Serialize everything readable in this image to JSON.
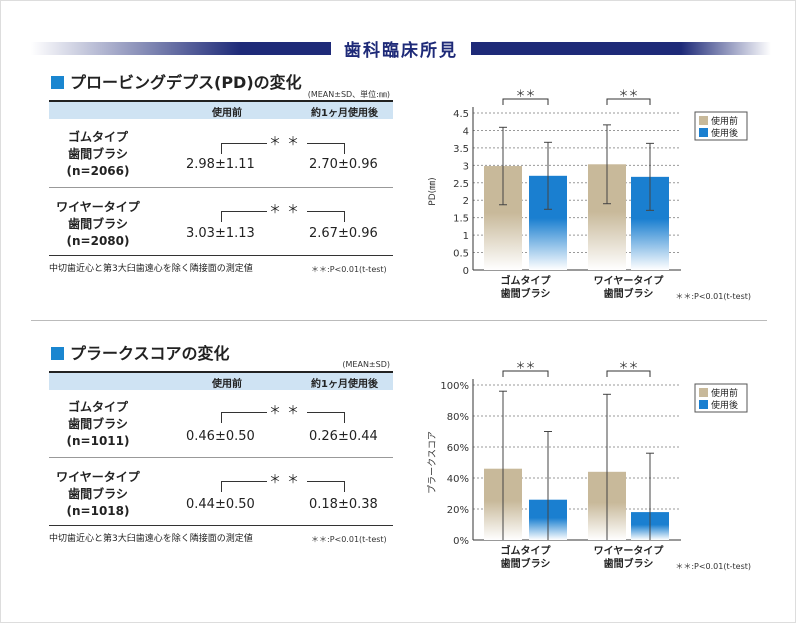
{
  "header": {
    "title": "歯科臨床所見"
  },
  "pd": {
    "title": "プロービングデプス(PD)の変化",
    "unit_note": "(MEAN±SD、単位:㎜)",
    "col1": "使用前",
    "col2": "約1ヶ月使用後",
    "rows": [
      {
        "l1": "ゴムタイプ",
        "l2": "歯間ブラシ",
        "l3": "(n=2066)",
        "before": "2.98±1.11",
        "after": "2.70±0.96",
        "sig": "＊＊"
      },
      {
        "l1": "ワイヤータイプ",
        "l2": "歯間ブラシ",
        "l3": "(n=2080)",
        "before": "3.03±1.13",
        "after": "2.67±0.96",
        "sig": "＊＊"
      }
    ],
    "footnote": "中切歯近心と第3大臼歯遠心を除く隣接面の測定値",
    "pnote": "＊＊:P<0.01(t-test)"
  },
  "plaque": {
    "title": "プラークスコアの変化",
    "unit_note": "(MEAN±SD)",
    "col1": "使用前",
    "col2": "約1ヶ月使用後",
    "rows": [
      {
        "l1": "ゴムタイプ",
        "l2": "歯間ブラシ",
        "l3": "(n=1011)",
        "before": "0.46±0.50",
        "after": "0.26±0.44",
        "sig": "＊＊"
      },
      {
        "l1": "ワイヤータイプ",
        "l2": "歯間ブラシ",
        "l3": "(n=1018)",
        "before": "0.44±0.50",
        "after": "0.18±0.38",
        "sig": "＊＊"
      }
    ],
    "footnote": "中切歯近心と第3大臼歯遠心を除く隣接面の測定値",
    "pnote": "＊＊:P<0.01(t-test)"
  },
  "chart_data": [
    {
      "type": "bar",
      "ylabel": "PD(㎜)",
      "ylim": [
        0,
        4.5
      ],
      "yticks": [
        "0",
        "0.5",
        "1",
        "1.5",
        "2",
        "2.5",
        "3",
        "3.5",
        "4",
        "4.5"
      ],
      "ystep": 0.5,
      "categories": [
        [
          "ゴムタイプ",
          "歯間ブラシ"
        ],
        [
          "ワイヤータイプ",
          "歯間ブラシ"
        ]
      ],
      "series": [
        {
          "name": "使用前",
          "values": [
            2.98,
            3.03
          ],
          "sd": [
            1.11,
            1.13
          ],
          "color": "#c8b99a"
        },
        {
          "name": "使用後",
          "values": [
            2.7,
            2.67
          ],
          "sd": [
            0.96,
            0.96
          ],
          "color": "#1a7fd0"
        }
      ],
      "significance": [
        "＊＊",
        "＊＊"
      ],
      "legend": "top-right",
      "grid": true,
      "pnote": "＊＊:P<0.01(t-test)"
    },
    {
      "type": "bar",
      "ylabel": "プラークスコア",
      "ylim": [
        0,
        1
      ],
      "yticks": [
        "0%",
        "20%",
        "40%",
        "60%",
        "80%",
        "100%"
      ],
      "ystep": 0.2,
      "categories": [
        [
          "ゴムタイプ",
          "歯間ブラシ"
        ],
        [
          "ワイヤータイプ",
          "歯間ブラシ"
        ]
      ],
      "series": [
        {
          "name": "使用前",
          "values": [
            0.46,
            0.44
          ],
          "sd": [
            0.5,
            0.5
          ],
          "color": "#c8b99a"
        },
        {
          "name": "使用後",
          "values": [
            0.26,
            0.18
          ],
          "sd": [
            0.44,
            0.38
          ],
          "color": "#1a7fd0"
        }
      ],
      "significance": [
        "＊＊",
        "＊＊"
      ],
      "legend": "top-right",
      "grid": true,
      "pnote": "＊＊:P<0.01(t-test)"
    }
  ]
}
